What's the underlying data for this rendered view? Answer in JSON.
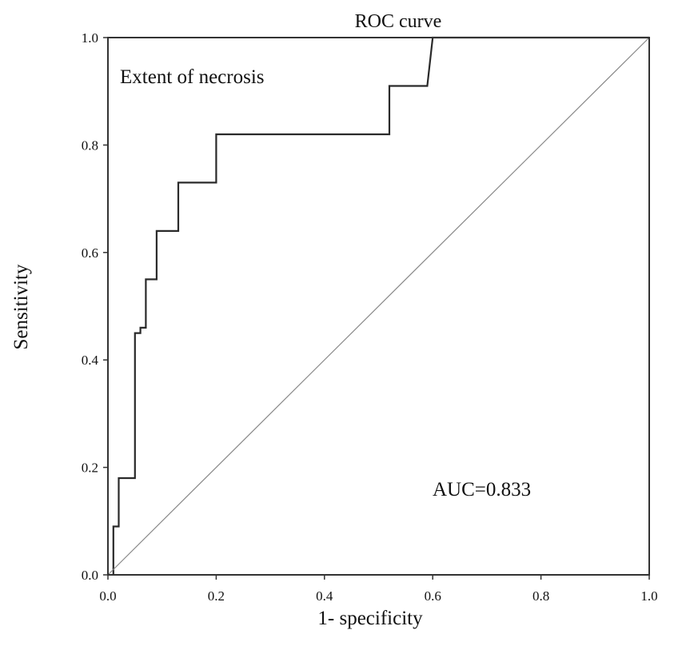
{
  "chart_data": {
    "type": "line",
    "title": "ROC curve",
    "xlabel": "1- specificity",
    "ylabel": "Sensitivity",
    "xlim": [
      0.0,
      1.0
    ],
    "ylim": [
      0.0,
      1.0
    ],
    "xticks": [
      "0.0",
      "0.2",
      "0.4",
      "0.6",
      "0.8",
      "1.0"
    ],
    "yticks": [
      "0.0",
      "0.2",
      "0.4",
      "0.6",
      "0.8",
      "1.0"
    ],
    "grid": false,
    "annotations": [
      "Extent of necrosis",
      "AUC=0.833"
    ],
    "series": [
      {
        "type": "step",
        "color": "#2a2a2a",
        "x": [
          0.01,
          0.01,
          0.02,
          0.02,
          0.05,
          0.05,
          0.06,
          0.06,
          0.07,
          0.07,
          0.09,
          0.09,
          0.13,
          0.13,
          0.2,
          0.2,
          0.52,
          0.52,
          0.56,
          0.56,
          0.59,
          0.6,
          0.61,
          1.0
        ],
        "y": [
          0.0,
          0.09,
          0.09,
          0.18,
          0.18,
          0.45,
          0.45,
          0.46,
          0.46,
          0.55,
          0.55,
          0.64,
          0.64,
          0.73,
          0.73,
          0.82,
          0.82,
          0.91,
          0.91,
          0.91,
          0.91,
          1.0,
          1.0,
          1.0
        ]
      },
      {
        "type": "reference",
        "color": "#888888",
        "x": [
          0.0,
          1.0
        ],
        "y": [
          0.0,
          1.0
        ]
      }
    ]
  }
}
